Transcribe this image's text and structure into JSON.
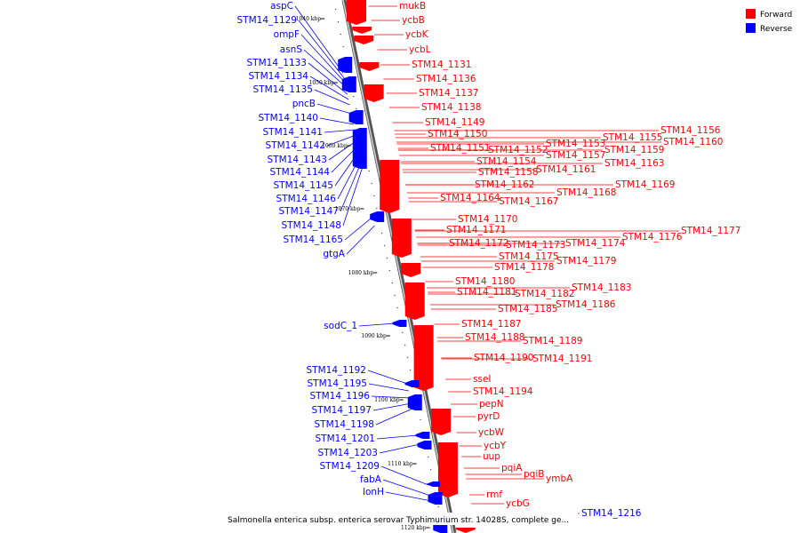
{
  "caption": "Salmonella enterica subsp. enterica serovar Typhimurium str. 14028S, complete ge...",
  "colors": {
    "forward": "#ff0000",
    "reverse": "#0000ff",
    "backbone": "#888888"
  },
  "legend": [
    {
      "label": "Forward",
      "strand": "forward"
    },
    {
      "label": "Reverse",
      "strand": "reverse"
    }
  ],
  "ticks": [
    "1040 kbp",
    "1050 kbp",
    "1060 kbp",
    "1070 kbp",
    "1080 kbp",
    "1090 kbp",
    "1100 kbp",
    "1110 kbp",
    "1120 kbp"
  ],
  "reverse_genes": [
    "aspC",
    "STM14_1129",
    "ompF",
    "asnS",
    "STM14_1133",
    "STM14_1134",
    "STM14_1135",
    "pncB",
    "STM14_1140",
    "STM14_1141",
    "STM14_1142",
    "STM14_1143",
    "STM14_1144",
    "STM14_1145",
    "STM14_1146",
    "STM14_1147",
    "STM14_1148",
    "STM14_1165",
    "gtgA",
    "sodC_1",
    "STM14_1192",
    "STM14_1195",
    "STM14_1196",
    "STM14_1197",
    "STM14_1198",
    "STM14_1201",
    "STM14_1203",
    "STM14_1209",
    "fabA",
    "lonH"
  ],
  "forward_genes": [
    "mukB",
    "ycbB",
    "ycbK",
    "ycbL",
    "STM14_1131",
    "STM14_1136",
    "STM14_1137",
    "STM14_1138",
    "STM14_1149",
    "STM14_1150",
    "STM14_1151",
    "STM14_1152",
    "STM14_1153",
    "STM14_1155",
    "STM14_1156",
    "STM14_1160",
    "STM14_1159",
    "STM14_1157",
    "STM14_1154",
    "STM14_1161",
    "STM14_1163",
    "STM14_1158",
    "STM14_1162",
    "STM14_1169",
    "STM14_1168",
    "STM14_1164",
    "STM14_1167",
    "STM14_1170",
    "STM14_1171",
    "STM14_1177",
    "STM14_1176",
    "STM14_1172",
    "STM14_1173",
    "STM14_1174",
    "STM14_1175",
    "STM14_1179",
    "STM14_1178",
    "STM14_1180",
    "STM14_1183",
    "STM14_1181",
    "STM14_1182",
    "STM14_1186",
    "STM14_1185",
    "STM14_1187",
    "STM14_1188",
    "STM14_1189",
    "STM14_1190",
    "STM14_1191",
    "sseI",
    "STM14_1194",
    "pepN",
    "pyrD",
    "ycbW",
    "ycbY",
    "uup",
    "pqiA",
    "pqiB",
    "ymbA",
    "rmf",
    "ycbG",
    "STM14_1216"
  ]
}
